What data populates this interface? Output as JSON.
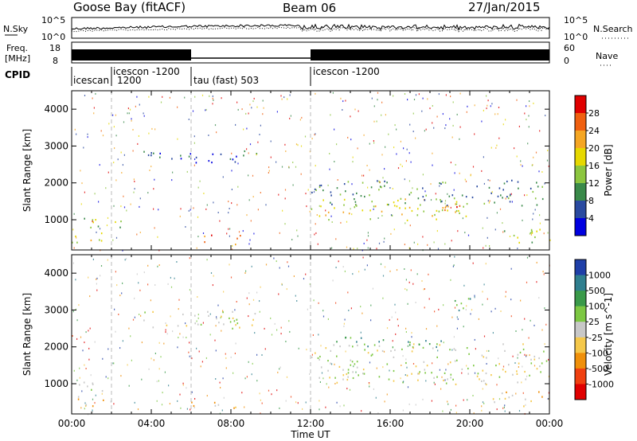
{
  "header": {
    "station": "Goose Bay (fitACF)",
    "beam": "Beam 06",
    "date": "27/Jan/2015"
  },
  "strips": {
    "nsky_label": "N.Sky",
    "nsky_ticks": [
      "10^5",
      "10^0"
    ],
    "nsearch_label": "N.Search",
    "nsearch_ticks": [
      "10^5",
      "10^0"
    ],
    "freq_label_1": "Freq.",
    "freq_label_2": "[MHz]",
    "freq_ticks": [
      "18",
      "8"
    ],
    "nave_label": "Nave",
    "nave_ticks": [
      "60",
      "0"
    ],
    "cpid_label": "CPID",
    "cpid_segments": [
      {
        "label": "icescan",
        "start_h": 0,
        "end_h": 2
      },
      {
        "label": "icescon -1200",
        "start_h": 2,
        "end_h": 6,
        "sub": "1200"
      },
      {
        "label": "tau (fast) 503",
        "start_h": 6,
        "end_h": 12
      },
      {
        "label": "icescon -1200",
        "start_h": 12,
        "end_h": 24
      }
    ]
  },
  "chart_data": [
    {
      "type": "heatmap",
      "name": "power",
      "ylabel": "Slant Range [km]",
      "xlabel": "",
      "xlim_h": [
        0,
        24
      ],
      "ylim": [
        180,
        4500
      ],
      "yticks": [
        1000,
        2000,
        3000,
        4000
      ],
      "colorbar_label": "Power [dB]",
      "colorbar_ticks": [
        "28",
        "24",
        "20",
        "16",
        "12",
        "8",
        "4"
      ],
      "colorbar_colors": [
        "#e00000",
        "#f06010",
        "#f5a623",
        "#e6d800",
        "#8cc63f",
        "#3a8a4a",
        "#2a4aa0",
        "#0000e0"
      ],
      "regions": [
        {
          "t": [
            0.0,
            1.8
          ],
          "r": [
            800,
            1100
          ],
          "level": 3
        },
        {
          "t": [
            0.0,
            2.0
          ],
          "r": [
            400,
            700
          ],
          "level": 4
        },
        {
          "t": [
            2.0,
            3.5
          ],
          "r": [
            800,
            1000
          ],
          "level": 3
        },
        {
          "t": [
            3.5,
            5.8
          ],
          "r": [
            2600,
            3000
          ],
          "level": 1
        },
        {
          "t": [
            5.8,
            9.5
          ],
          "r": [
            2500,
            2900
          ],
          "level": 1
        },
        {
          "t": [
            6.5,
            8.5
          ],
          "r": [
            350,
            600
          ],
          "level": 6
        },
        {
          "t": [
            12.0,
            20.0
          ],
          "r": [
            1000,
            1600
          ],
          "level": 4
        },
        {
          "t": [
            12.0,
            24.0
          ],
          "r": [
            1400,
            2100
          ],
          "level": 2
        },
        {
          "t": [
            18.5,
            20.5
          ],
          "r": [
            1100,
            1400
          ],
          "level": 6
        },
        {
          "t": [
            21.0,
            24.0
          ],
          "r": [
            400,
            800
          ],
          "level": 3
        }
      ]
    },
    {
      "type": "heatmap",
      "name": "velocity",
      "ylabel": "Slant Range [km]",
      "xlabel": "Time UT",
      "xlim_h": [
        0,
        24
      ],
      "ylim": [
        180,
        4500
      ],
      "yticks": [
        1000,
        2000,
        3000,
        4000
      ],
      "xticks": [
        "00:00",
        "04:00",
        "08:00",
        "12:00",
        "16:00",
        "20:00",
        "00:00"
      ],
      "colorbar_label": "Velocity [m s^-1]",
      "colorbar_ticks": [
        "1000",
        "500",
        "100",
        "25",
        "-25",
        "-100",
        "-500",
        "-1000"
      ],
      "colorbar_colors": [
        "#1f3fa8",
        "#2f7f8f",
        "#3a9a4a",
        "#7dc843",
        "#c8c8c8",
        "#f5c84a",
        "#f0900a",
        "#f04010",
        "#e00000"
      ],
      "regions": [
        {
          "t": [
            0.0,
            2.0
          ],
          "r": [
            800,
            1100
          ],
          "level": 4
        },
        {
          "t": [
            0.0,
            2.0
          ],
          "r": [
            400,
            700
          ],
          "level": 3
        },
        {
          "t": [
            3.5,
            9.5
          ],
          "r": [
            2500,
            3000
          ],
          "level": 4
        },
        {
          "t": [
            6.0,
            8.5
          ],
          "r": [
            350,
            600
          ],
          "level": 3
        },
        {
          "t": [
            12.0,
            24.0
          ],
          "r": [
            1000,
            2100
          ],
          "level": 4
        },
        {
          "t": [
            13.0,
            19.0
          ],
          "r": [
            2000,
            2300
          ],
          "level": 6
        },
        {
          "t": [
            18.5,
            20.0
          ],
          "r": [
            3000,
            3400
          ],
          "level": 6
        },
        {
          "t": [
            21.0,
            24.0
          ],
          "r": [
            400,
            800
          ],
          "level": 3
        }
      ]
    }
  ]
}
